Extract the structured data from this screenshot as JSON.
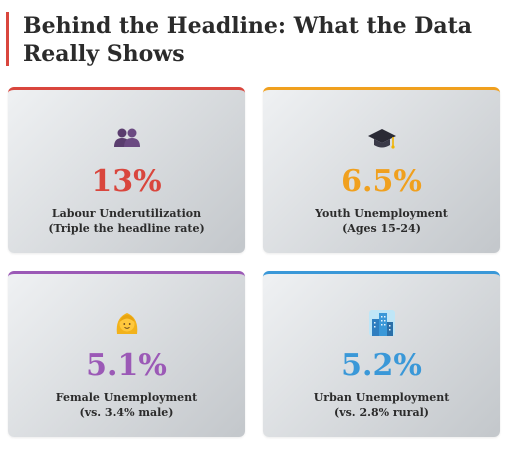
{
  "title": "Behind the Headline: What the Data Really Shows",
  "colors": {
    "accent_red": "#d9463d",
    "accent_orange": "#f0a01e",
    "accent_purple": "#9b59b6",
    "accent_blue": "#3a98d8"
  },
  "cards": [
    {
      "icon": "people-icon",
      "value": "13%",
      "label": "Labour Underutilization",
      "sub": "(Triple the headline rate)",
      "color": "#d9463d"
    },
    {
      "icon": "graduation-cap-icon",
      "value": "6.5%",
      "label": "Youth Unemployment",
      "sub": "(Ages 15-24)",
      "color": "#f0a01e"
    },
    {
      "icon": "woman-face-icon",
      "value": "5.1%",
      "label": "Female Unemployment",
      "sub": "(vs. 3.4% male)",
      "color": "#9b59b6"
    },
    {
      "icon": "city-icon",
      "value": "5.2%",
      "label": "Urban Unemployment",
      "sub": "(vs. 2.8% rural)",
      "color": "#3a98d8"
    }
  ]
}
